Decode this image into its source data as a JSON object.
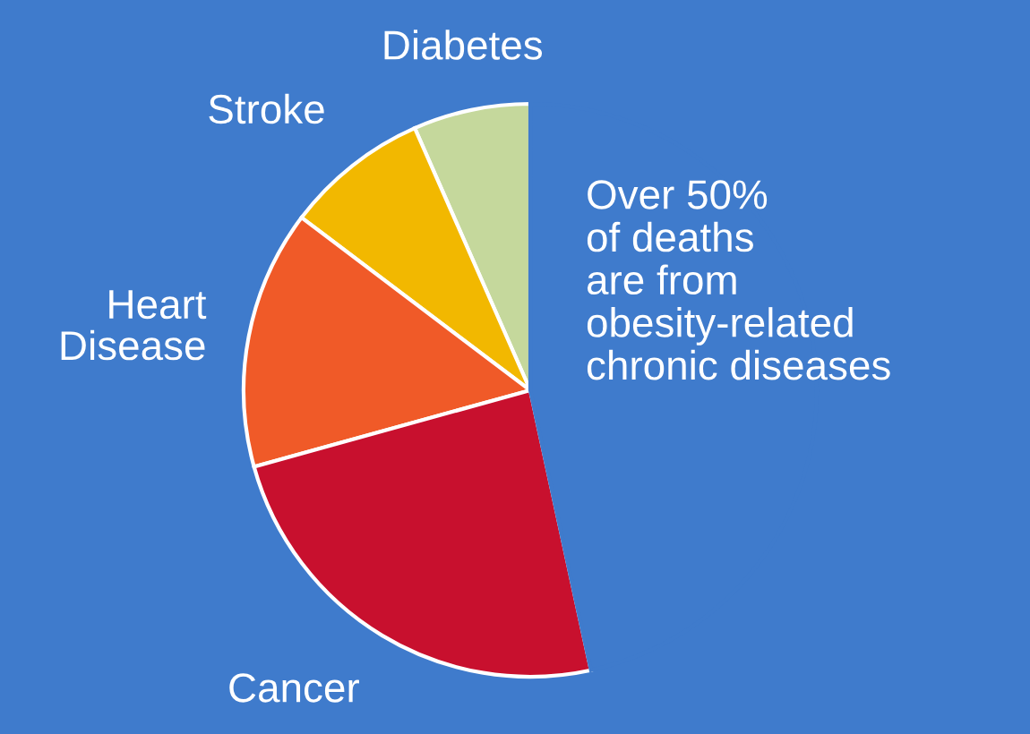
{
  "chart_data": {
    "type": "pie",
    "categories": [
      "Diabetes",
      "Stroke",
      "Heart Disease",
      "Cancer",
      null
    ],
    "values": [
      6.6,
      8.1,
      14.6,
      24.1,
      46.6
    ],
    "colors": [
      "#c5d89c",
      "#f2b800",
      "#f05a28",
      "#c8102e",
      "#3f7bcc"
    ],
    "annotations": [
      "Over 50%\nof deaths\nare from\nobesity-related\nchronic diseases"
    ],
    "legend": false
  }
}
